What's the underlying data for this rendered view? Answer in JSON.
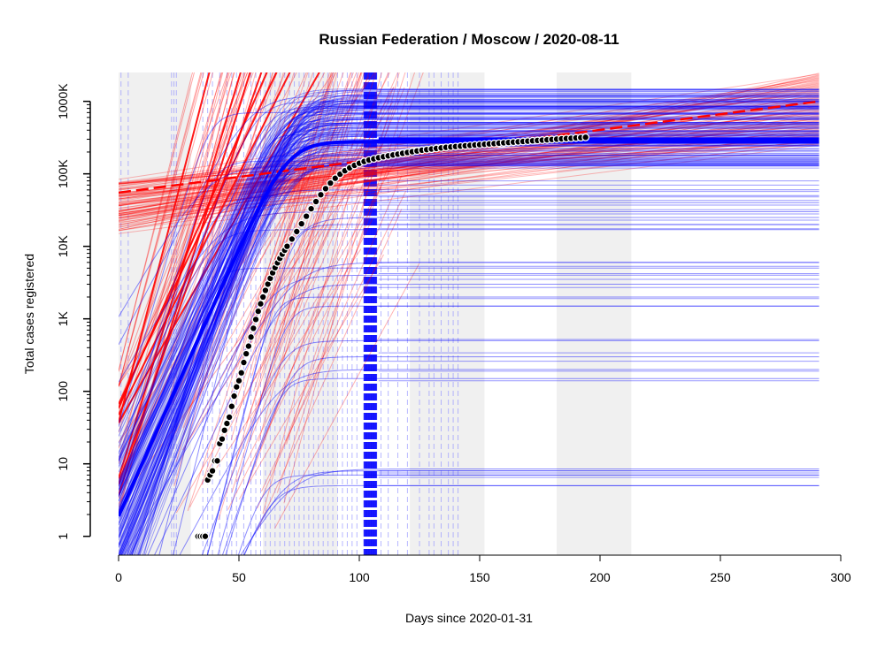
{
  "colors": {
    "background": "#ffffff",
    "shade": "#f0f0f0",
    "observed_fill": "#000000",
    "observed_stroke": "#ffffff",
    "exponential_fit": "#ff0000",
    "logistic_fit": "#0000ff",
    "axis": "#000000"
  },
  "chart_data": {
    "type": "line",
    "title": "Russian Federation / Moscow / 2020-08-11",
    "xlabel": "Days since 2020-01-31",
    "ylabel": "Total cases registered",
    "xlim": [
      0,
      300
    ],
    "ylim": [
      0.55,
      2500000
    ],
    "y_scale": "log",
    "grid": false,
    "legend": "none",
    "x_ticks": [
      0,
      50,
      100,
      150,
      200,
      250,
      300
    ],
    "y_ticks": [
      {
        "value": 1,
        "label": "1"
      },
      {
        "value": 10,
        "label": "10"
      },
      {
        "value": 100,
        "label": "100"
      },
      {
        "value": 1000,
        "label": "1K"
      },
      {
        "value": 10000,
        "label": "10K"
      },
      {
        "value": 100000,
        "label": "100K"
      },
      {
        "value": 1000000,
        "label": "1000K"
      }
    ],
    "shaded_periods": [
      [
        0,
        30
      ],
      [
        60,
        91
      ],
      [
        121,
        152
      ],
      [
        182,
        213
      ]
    ],
    "observed_points": [
      {
        "x": 33,
        "y": 1
      },
      {
        "x": 34,
        "y": 1
      },
      {
        "x": 35,
        "y": 1
      },
      {
        "x": 36,
        "y": 1
      },
      {
        "x": 37,
        "y": 6
      },
      {
        "x": 38,
        "y": 7
      },
      {
        "x": 39,
        "y": 8
      },
      {
        "x": 40,
        "y": 11
      },
      {
        "x": 41,
        "y": 11
      },
      {
        "x": 42,
        "y": 19
      },
      {
        "x": 43,
        "y": 22
      },
      {
        "x": 44,
        "y": 29
      },
      {
        "x": 45,
        "y": 36
      },
      {
        "x": 46,
        "y": 44
      },
      {
        "x": 47,
        "y": 62
      },
      {
        "x": 48,
        "y": 86
      },
      {
        "x": 49,
        "y": 115
      },
      {
        "x": 50,
        "y": 140
      },
      {
        "x": 51,
        "y": 180
      },
      {
        "x": 52,
        "y": 250
      },
      {
        "x": 53,
        "y": 330
      },
      {
        "x": 54,
        "y": 420
      },
      {
        "x": 55,
        "y": 560
      },
      {
        "x": 56,
        "y": 740
      },
      {
        "x": 57,
        "y": 980
      },
      {
        "x": 58,
        "y": 1270
      },
      {
        "x": 59,
        "y": 1610
      },
      {
        "x": 60,
        "y": 2000
      },
      {
        "x": 61,
        "y": 2470
      },
      {
        "x": 62,
        "y": 3010
      },
      {
        "x": 63,
        "y": 3620
      },
      {
        "x": 64,
        "y": 4310
      },
      {
        "x": 65,
        "y": 5080
      },
      {
        "x": 66,
        "y": 5920
      },
      {
        "x": 67,
        "y": 6830
      },
      {
        "x": 68,
        "y": 7800
      },
      {
        "x": 69,
        "y": 8840
      },
      {
        "x": 70,
        "y": 10000
      },
      {
        "x": 72,
        "y": 12600
      },
      {
        "x": 74,
        "y": 16000
      },
      {
        "x": 76,
        "y": 20500
      },
      {
        "x": 78,
        "y": 26000
      },
      {
        "x": 80,
        "y": 33000
      },
      {
        "x": 82,
        "y": 41500
      },
      {
        "x": 84,
        "y": 51500
      },
      {
        "x": 86,
        "y": 62500
      },
      {
        "x": 88,
        "y": 74500
      },
      {
        "x": 90,
        "y": 87000
      },
      {
        "x": 92,
        "y": 99000
      },
      {
        "x": 94,
        "y": 110500
      },
      {
        "x": 96,
        "y": 121000
      },
      {
        "x": 98,
        "y": 131000
      },
      {
        "x": 100,
        "y": 140000
      },
      {
        "x": 102,
        "y": 148000
      },
      {
        "x": 104,
        "y": 155000
      },
      {
        "x": 106,
        "y": 161000
      },
      {
        "x": 108,
        "y": 167000
      },
      {
        "x": 110,
        "y": 172000
      },
      {
        "x": 112,
        "y": 177000
      },
      {
        "x": 114,
        "y": 182000
      },
      {
        "x": 116,
        "y": 187000
      },
      {
        "x": 118,
        "y": 192000
      },
      {
        "x": 120,
        "y": 197000
      },
      {
        "x": 122,
        "y": 202000
      },
      {
        "x": 124,
        "y": 207000
      },
      {
        "x": 126,
        "y": 212000
      },
      {
        "x": 128,
        "y": 216000
      },
      {
        "x": 130,
        "y": 220000
      },
      {
        "x": 132,
        "y": 224000
      },
      {
        "x": 134,
        "y": 228000
      },
      {
        "x": 136,
        "y": 232000
      },
      {
        "x": 138,
        "y": 235000
      },
      {
        "x": 140,
        "y": 238000
      },
      {
        "x": 142,
        "y": 241000
      },
      {
        "x": 144,
        "y": 244000
      },
      {
        "x": 146,
        "y": 247000
      },
      {
        "x": 148,
        "y": 250000
      },
      {
        "x": 150,
        "y": 253000
      },
      {
        "x": 152,
        "y": 256000
      },
      {
        "x": 154,
        "y": 259000
      },
      {
        "x": 156,
        "y": 262000
      },
      {
        "x": 158,
        "y": 265000
      },
      {
        "x": 160,
        "y": 268000
      },
      {
        "x": 162,
        "y": 271000
      },
      {
        "x": 164,
        "y": 274000
      },
      {
        "x": 166,
        "y": 277000
      },
      {
        "x": 168,
        "y": 280000
      },
      {
        "x": 170,
        "y": 283000
      },
      {
        "x": 172,
        "y": 286000
      },
      {
        "x": 174,
        "y": 289000
      },
      {
        "x": 176,
        "y": 292000
      },
      {
        "x": 178,
        "y": 295000
      },
      {
        "x": 180,
        "y": 298000
      },
      {
        "x": 182,
        "y": 301000
      },
      {
        "x": 184,
        "y": 304000
      },
      {
        "x": 186,
        "y": 307000
      },
      {
        "x": 188,
        "y": 310000
      },
      {
        "x": 190,
        "y": 313000
      },
      {
        "x": 192,
        "y": 316000
      },
      {
        "x": 194,
        "y": 319000
      }
    ],
    "exponential_fits": {
      "main_red_dashed": {
        "x": [
          0,
          291
        ],
        "y": [
          55000,
          1000000
        ]
      },
      "fan_upper": {
        "x_end": 291,
        "y_end_range": [
          250000,
          2500000
        ]
      }
    },
    "logistic_fits": {
      "main_blue_dashed": {
        "x_mid": 70,
        "plateau": 280000,
        "rate": 0.17
      },
      "plateau_levels": [
        7,
        8,
        8.5,
        5,
        150,
        200,
        300,
        500,
        1500,
        2000,
        3000,
        4000,
        5000,
        6000,
        17000,
        20000,
        25000,
        30000,
        40000,
        50000,
        60000,
        130000,
        150000,
        180000,
        250000,
        300000,
        350000,
        400000,
        500000,
        600000,
        700000,
        850000,
        1000000,
        1200000
      ]
    }
  }
}
